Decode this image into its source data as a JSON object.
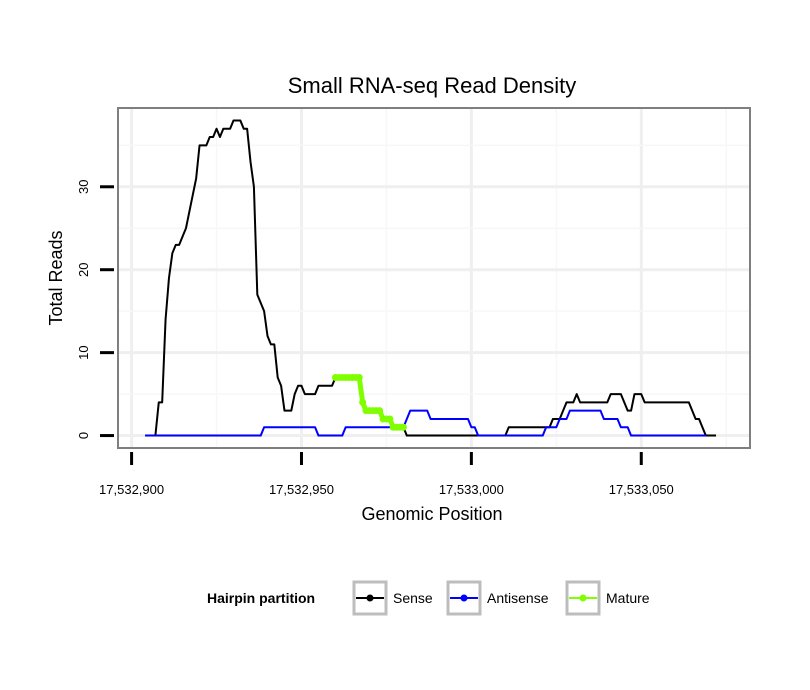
{
  "chart_data": {
    "type": "line",
    "title": "Small RNA-seq Read Density",
    "xlabel": "Genomic Position",
    "ylabel": "Total Reads",
    "xlim": [
      17532896,
      17533082
    ],
    "ylim": [
      -1.5,
      39.5
    ],
    "x_ticks": [
      17532900,
      17532950,
      17533000,
      17533050
    ],
    "x_tick_labels": [
      "17,532,900",
      "17,532,950",
      "17,533,000",
      "17,533,050"
    ],
    "y_ticks": [
      0,
      10,
      20,
      30
    ],
    "y_tick_labels": [
      "0",
      "10",
      "20",
      "30"
    ],
    "grid": true,
    "legend": {
      "title": "Hairpin partition",
      "position": "bottom",
      "entries": [
        "Sense",
        "Antisense",
        "Mature"
      ]
    },
    "series": [
      {
        "name": "Sense",
        "color": "#000000",
        "points": [
          [
            17532904,
            0
          ],
          [
            17532907,
            0
          ],
          [
            17532908,
            4
          ],
          [
            17532909,
            4
          ],
          [
            17532910,
            14
          ],
          [
            17532911,
            19
          ],
          [
            17532912,
            22
          ],
          [
            17532913,
            23
          ],
          [
            17532914,
            23
          ],
          [
            17532915,
            24
          ],
          [
            17532916,
            25
          ],
          [
            17532917,
            27
          ],
          [
            17532918,
            29
          ],
          [
            17532919,
            31
          ],
          [
            17532920,
            35
          ],
          [
            17532921,
            35
          ],
          [
            17532922,
            35
          ],
          [
            17532923,
            36
          ],
          [
            17532924,
            36
          ],
          [
            17532925,
            37
          ],
          [
            17532926,
            36
          ],
          [
            17532927,
            37
          ],
          [
            17532928,
            37
          ],
          [
            17532929,
            37
          ],
          [
            17532930,
            38
          ],
          [
            17532931,
            38
          ],
          [
            17532932,
            38
          ],
          [
            17532933,
            37
          ],
          [
            17532934,
            37
          ],
          [
            17532935,
            33
          ],
          [
            17532936,
            30
          ],
          [
            17532937,
            17
          ],
          [
            17532938,
            16
          ],
          [
            17532939,
            15
          ],
          [
            17532940,
            12
          ],
          [
            17532941,
            11
          ],
          [
            17532942,
            11
          ],
          [
            17532943,
            7
          ],
          [
            17532944,
            6
          ],
          [
            17532945,
            3
          ],
          [
            17532946,
            3
          ],
          [
            17532947,
            3
          ],
          [
            17532948,
            5
          ],
          [
            17532949,
            6
          ],
          [
            17532950,
            6
          ],
          [
            17532951,
            5
          ],
          [
            17532952,
            5
          ],
          [
            17532953,
            5
          ],
          [
            17532954,
            5
          ],
          [
            17532955,
            6
          ],
          [
            17532956,
            6
          ],
          [
            17532957,
            6
          ],
          [
            17532958,
            6
          ],
          [
            17532959,
            6
          ],
          [
            17532960,
            7
          ],
          [
            17532961,
            7
          ],
          [
            17532962,
            7
          ],
          [
            17532963,
            7
          ],
          [
            17532964,
            7
          ],
          [
            17532965,
            7
          ],
          [
            17532966,
            7
          ],
          [
            17532967,
            7
          ],
          [
            17532968,
            4
          ],
          [
            17532969,
            3
          ],
          [
            17532970,
            3
          ],
          [
            17532971,
            3
          ],
          [
            17532972,
            3
          ],
          [
            17532973,
            3
          ],
          [
            17532974,
            2
          ],
          [
            17532975,
            2
          ],
          [
            17532976,
            2
          ],
          [
            17532977,
            1
          ],
          [
            17532978,
            1
          ],
          [
            17532979,
            1
          ],
          [
            17532980,
            1
          ],
          [
            17532981,
            0
          ],
          [
            17532983,
            0
          ],
          [
            17533010,
            0
          ],
          [
            17533011,
            1
          ],
          [
            17533023,
            1
          ],
          [
            17533024,
            2
          ],
          [
            17533026,
            2
          ],
          [
            17533027,
            3
          ],
          [
            17533028,
            4
          ],
          [
            17533030,
            4
          ],
          [
            17533031,
            5
          ],
          [
            17533032,
            4
          ],
          [
            17533040,
            4
          ],
          [
            17533041,
            5
          ],
          [
            17533044,
            5
          ],
          [
            17533045,
            4
          ],
          [
            17533046,
            3
          ],
          [
            17533047,
            3
          ],
          [
            17533048,
            5
          ],
          [
            17533050,
            5
          ],
          [
            17533051,
            4
          ],
          [
            17533064,
            4
          ],
          [
            17533066,
            2
          ],
          [
            17533067,
            2
          ],
          [
            17533069,
            0
          ],
          [
            17533072,
            0
          ]
        ]
      },
      {
        "name": "Antisense",
        "color": "#0000ff",
        "points": [
          [
            17532904,
            0
          ],
          [
            17532938,
            0
          ],
          [
            17532939,
            1
          ],
          [
            17532954,
            1
          ],
          [
            17532955,
            0
          ],
          [
            17532962,
            0
          ],
          [
            17532963,
            1
          ],
          [
            17532980,
            1
          ],
          [
            17532981,
            2
          ],
          [
            17532982,
            3
          ],
          [
            17532987,
            3
          ],
          [
            17532988,
            2
          ],
          [
            17532999,
            2
          ],
          [
            17533000,
            1
          ],
          [
            17533001,
            1
          ],
          [
            17533002,
            0
          ],
          [
            17533021,
            0
          ],
          [
            17533022,
            1
          ],
          [
            17533025,
            1
          ],
          [
            17533026,
            2
          ],
          [
            17533028,
            2
          ],
          [
            17533029,
            3
          ],
          [
            17533038,
            3
          ],
          [
            17533039,
            2
          ],
          [
            17533043,
            2
          ],
          [
            17533044,
            1
          ],
          [
            17533046,
            1
          ],
          [
            17533047,
            0
          ],
          [
            17533069,
            0
          ]
        ]
      },
      {
        "name": "Mature",
        "color": "#7fff00",
        "points": [
          [
            17532960,
            7
          ],
          [
            17532961,
            7
          ],
          [
            17532962,
            7
          ],
          [
            17532963,
            7
          ],
          [
            17532964,
            7
          ],
          [
            17532965,
            7
          ],
          [
            17532966,
            7
          ],
          [
            17532967,
            7
          ],
          [
            17532968,
            4
          ],
          [
            17532969,
            3
          ],
          [
            17532970,
            3
          ],
          [
            17532971,
            3
          ],
          [
            17532972,
            3
          ],
          [
            17532973,
            3
          ],
          [
            17532974,
            2
          ],
          [
            17532975,
            2
          ],
          [
            17532976,
            2
          ],
          [
            17532977,
            1
          ],
          [
            17532978,
            1
          ],
          [
            17532979,
            1
          ],
          [
            17532980,
            1
          ]
        ]
      }
    ]
  }
}
